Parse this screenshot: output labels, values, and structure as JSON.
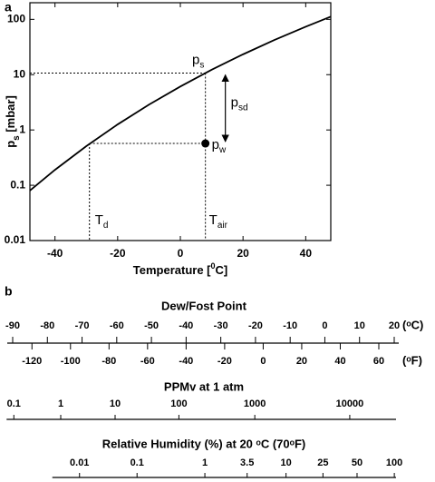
{
  "panel_labels": [
    "a",
    "b"
  ],
  "chart_data": {
    "type": "line",
    "xlabel": {
      "text": "Temperature [",
      "sup": "0",
      "unit": "C]"
    },
    "ylabel": {
      "text": "p",
      "sub": "s",
      "unit": " [mbar]"
    },
    "x": [
      -48,
      -40,
      -30,
      -20,
      -10,
      0,
      10,
      20,
      30,
      40,
      48
    ],
    "series": [
      {
        "color": "#000000",
        "values": [
          0.08,
          0.19,
          0.51,
          1.26,
          2.87,
          6.11,
          12.3,
          23.3,
          42.3,
          73.7,
          112
        ]
      }
    ],
    "xlim": [
      -48,
      48
    ],
    "xticks": [
      -40,
      -20,
      0,
      20,
      40
    ],
    "ylim": [
      0.01,
      200
    ],
    "yticks": [
      0.01,
      0.1,
      1,
      10,
      100
    ],
    "yscale": "log",
    "annotations": {
      "ps": {
        "text": "p",
        "sub": "s",
        "value": 10.7
      },
      "pw": {
        "text": "p",
        "sub": "w",
        "value": 0.57
      },
      "psd": {
        "text": "p",
        "sub": "sd"
      },
      "Td": {
        "text": "T",
        "sub": "d",
        "value": -29
      },
      "Tair": {
        "text": "T",
        "sub": "air",
        "value": 8
      }
    }
  },
  "scales": [
    {
      "title": "Dew/Fost Point",
      "ticks": [
        -90,
        -80,
        -70,
        -60,
        -50,
        -40,
        -30,
        -20,
        -10,
        0,
        10,
        20
      ],
      "unit": "(ᵒC)",
      "ticks2": [
        -120,
        -100,
        -80,
        -60,
        -40,
        -20,
        0,
        20,
        40,
        60
      ],
      "unit2": "(ᵒF)"
    },
    {
      "title": "PPMv at 1 atm",
      "ticks": [
        0.1,
        1,
        10,
        100,
        1000,
        10000
      ]
    },
    {
      "title": "Relative Humidity (%) at 20 ᵒC (70ᵒF)",
      "ticks": [
        0.01,
        0.1,
        1,
        3.5,
        10,
        25,
        50,
        100
      ]
    }
  ]
}
